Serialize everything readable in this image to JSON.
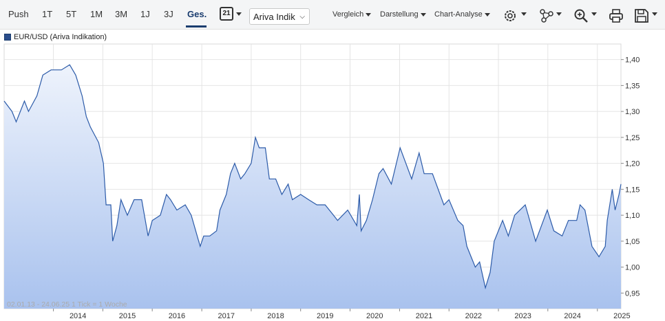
{
  "toolbar": {
    "tabs": [
      {
        "label": "Push"
      },
      {
        "label": "1T"
      },
      {
        "label": "5T"
      },
      {
        "label": "1M"
      },
      {
        "label": "3M"
      },
      {
        "label": "1J"
      },
      {
        "label": "3J"
      },
      {
        "label": "Ges.",
        "active": true
      }
    ],
    "calendar_day": "21",
    "source_select": "Ariva Indik",
    "menus": [
      "Vergleich",
      "Darstellung",
      "Chart-Analyse"
    ],
    "icons": [
      "settings-icon",
      "network-icon",
      "zoom-icon",
      "print-icon",
      "save-icon"
    ]
  },
  "legend": "EUR/USD (Ariva Indikation)",
  "range_note": "02.01.13 - 24.06.25   1 Tick = 1 Woche",
  "colors": {
    "line": "#2b5aa8",
    "fill_top": "#eef3fc",
    "fill_bottom": "#a9c2ee",
    "accent": "#1a3c6e"
  },
  "chart_data": {
    "type": "area",
    "series": [
      {
        "name": "EUR/USD (Ariva Indikation)",
        "points": [
          [
            "2013-01-02",
            1.32
          ],
          [
            "2013-03-01",
            1.3
          ],
          [
            "2013-04-01",
            1.28
          ],
          [
            "2013-06-01",
            1.32
          ],
          [
            "2013-07-01",
            1.3
          ],
          [
            "2013-09-01",
            1.33
          ],
          [
            "2013-10-15",
            1.37
          ],
          [
            "2013-12-15",
            1.38
          ],
          [
            "2014-03-01",
            1.38
          ],
          [
            "2014-05-01",
            1.39
          ],
          [
            "2014-06-15",
            1.37
          ],
          [
            "2014-08-01",
            1.33
          ],
          [
            "2014-09-01",
            1.29
          ],
          [
            "2014-10-01",
            1.27
          ],
          [
            "2014-12-01",
            1.24
          ],
          [
            "2015-01-05",
            1.2
          ],
          [
            "2015-01-25",
            1.12
          ],
          [
            "2015-03-01",
            1.12
          ],
          [
            "2015-03-15",
            1.05
          ],
          [
            "2015-04-15",
            1.08
          ],
          [
            "2015-05-15",
            1.13
          ],
          [
            "2015-07-01",
            1.1
          ],
          [
            "2015-08-20",
            1.13
          ],
          [
            "2015-10-15",
            1.13
          ],
          [
            "2015-12-01",
            1.06
          ],
          [
            "2016-01-01",
            1.09
          ],
          [
            "2016-03-01",
            1.1
          ],
          [
            "2016-04-15",
            1.14
          ],
          [
            "2016-05-15",
            1.13
          ],
          [
            "2016-07-01",
            1.11
          ],
          [
            "2016-09-01",
            1.12
          ],
          [
            "2016-10-15",
            1.1
          ],
          [
            "2016-12-20",
            1.04
          ],
          [
            "2017-01-15",
            1.06
          ],
          [
            "2017-03-01",
            1.06
          ],
          [
            "2017-04-20",
            1.07
          ],
          [
            "2017-05-15",
            1.11
          ],
          [
            "2017-07-01",
            1.14
          ],
          [
            "2017-08-01",
            1.18
          ],
          [
            "2017-09-01",
            1.2
          ],
          [
            "2017-10-15",
            1.17
          ],
          [
            "2017-11-15",
            1.18
          ],
          [
            "2018-01-01",
            1.2
          ],
          [
            "2018-02-01",
            1.25
          ],
          [
            "2018-03-01",
            1.23
          ],
          [
            "2018-04-15",
            1.23
          ],
          [
            "2018-05-15",
            1.17
          ],
          [
            "2018-07-01",
            1.17
          ],
          [
            "2018-08-15",
            1.14
          ],
          [
            "2018-10-01",
            1.16
          ],
          [
            "2018-11-01",
            1.13
          ],
          [
            "2019-01-01",
            1.14
          ],
          [
            "2019-03-01",
            1.13
          ],
          [
            "2019-05-01",
            1.12
          ],
          [
            "2019-07-01",
            1.12
          ],
          [
            "2019-09-01",
            1.1
          ],
          [
            "2019-10-01",
            1.09
          ],
          [
            "2019-12-15",
            1.11
          ],
          [
            "2020-02-20",
            1.08
          ],
          [
            "2020-03-10",
            1.14
          ],
          [
            "2020-03-23",
            1.07
          ],
          [
            "2020-05-01",
            1.09
          ],
          [
            "2020-06-15",
            1.13
          ],
          [
            "2020-08-01",
            1.18
          ],
          [
            "2020-09-01",
            1.19
          ],
          [
            "2020-11-01",
            1.16
          ],
          [
            "2021-01-05",
            1.23
          ],
          [
            "2021-03-31",
            1.17
          ],
          [
            "2021-05-25",
            1.22
          ],
          [
            "2021-07-01",
            1.18
          ],
          [
            "2021-09-01",
            1.18
          ],
          [
            "2021-11-24",
            1.12
          ],
          [
            "2022-01-01",
            1.13
          ],
          [
            "2022-03-07",
            1.09
          ],
          [
            "2022-04-15",
            1.08
          ],
          [
            "2022-05-13",
            1.04
          ],
          [
            "2022-07-14",
            1.0
          ],
          [
            "2022-08-15",
            1.01
          ],
          [
            "2022-09-27",
            0.96
          ],
          [
            "2022-11-01",
            0.99
          ],
          [
            "2022-12-01",
            1.05
          ],
          [
            "2023-02-01",
            1.09
          ],
          [
            "2023-03-15",
            1.06
          ],
          [
            "2023-05-01",
            1.1
          ],
          [
            "2023-07-18",
            1.12
          ],
          [
            "2023-10-03",
            1.05
          ],
          [
            "2023-12-28",
            1.11
          ],
          [
            "2024-02-14",
            1.07
          ],
          [
            "2024-04-16",
            1.06
          ],
          [
            "2024-06-01",
            1.09
          ],
          [
            "2024-08-01",
            1.09
          ],
          [
            "2024-08-26",
            1.12
          ],
          [
            "2024-10-01",
            1.11
          ],
          [
            "2024-11-22",
            1.04
          ],
          [
            "2025-01-13",
            1.02
          ],
          [
            "2025-02-28",
            1.04
          ],
          [
            "2025-03-15",
            1.09
          ],
          [
            "2025-04-21",
            1.15
          ],
          [
            "2025-05-12",
            1.11
          ],
          [
            "2025-06-10",
            1.14
          ],
          [
            "2025-06-24",
            1.16
          ]
        ]
      }
    ],
    "x_ticks": [
      "2014",
      "2015",
      "2016",
      "2017",
      "2018",
      "2019",
      "2020",
      "2021",
      "2022",
      "2023",
      "2024",
      "2025"
    ],
    "y_ticks": [
      "0,95",
      "1,00",
      "1,05",
      "1,10",
      "1,15",
      "1,20",
      "1,25",
      "1,30",
      "1,35",
      "1,40"
    ],
    "x_range": [
      "2013-01-02",
      "2025-06-24"
    ],
    "ylim": [
      0.92,
      1.43
    ],
    "grid": true,
    "legend_position": "top-left"
  }
}
